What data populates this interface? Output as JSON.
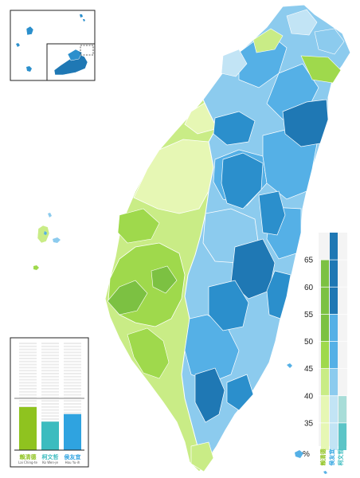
{
  "colors": {
    "lai": [
      "#e6f7b4",
      "#c9ec86",
      "#9fd94c",
      "#7cc142"
    ],
    "ko": [
      "#a8ddd8",
      "#5cc5c7"
    ],
    "hou": [
      "#c2e4f5",
      "#8ccbee",
      "#55b0e6",
      "#2b8fcc",
      "#1f78b4"
    ],
    "land_stroke": "#ffffff",
    "bar_bg_stripe": "#ececec"
  },
  "legend_bar": {
    "candidates": [
      {
        "name": "賴清德",
        "latin": "Lai Ching-te",
        "color": "#8fc31f",
        "value": 40.05
      },
      {
        "name": "柯文哲",
        "latin": "Ko Wen-je",
        "color": "#3cbcbf",
        "value": 26.46
      },
      {
        "name": "侯友宜",
        "latin": "Hou Yu-ih",
        "color": "#2fa3e0",
        "value": 33.49
      }
    ]
  },
  "scale": {
    "unit": "%",
    "ticks": [
      "35",
      "40",
      "45",
      "50",
      "55",
      "60",
      "65"
    ],
    "columns": [
      {
        "name": "賴清德",
        "colors": [
          "#e6f7b4",
          "#c9ec86",
          "#9fd94c",
          "#7cc142"
        ]
      },
      {
        "name": "侯友宜",
        "colors": [
          "#c2e4f5",
          "#8ccbee",
          "#55b0e6",
          "#2b8fcc",
          "#1f78b4"
        ]
      },
      {
        "name": "柯文哲",
        "colors": [
          "#a8ddd8",
          "#5cc5c7"
        ]
      }
    ]
  }
}
